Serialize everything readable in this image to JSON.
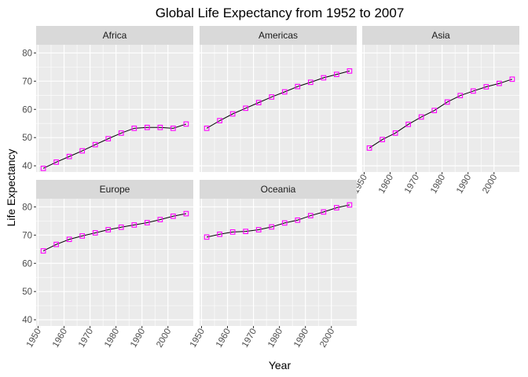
{
  "chart_data": {
    "type": "line",
    "title": "Global Life Expectancy from 1952 to 2007",
    "xlabel": "Year",
    "ylabel": "Life Expectancy",
    "x": [
      1952,
      1957,
      1962,
      1967,
      1972,
      1977,
      1982,
      1987,
      1992,
      1997,
      2002,
      2007
    ],
    "xlim": [
      1949.25,
      2009.75
    ],
    "ylim": [
      37.8,
      82.9
    ],
    "x_ticks": [
      "1950",
      "1960",
      "1970",
      "1980",
      "1990",
      "2000"
    ],
    "y_ticks": [
      "40",
      "50",
      "60",
      "70",
      "80"
    ],
    "grid": true,
    "marker": "square",
    "line_color": "#000000",
    "marker_color": "#ff00ff",
    "panel_background": "#ebebeb",
    "strip_background": "#d9d9d9",
    "facets": [
      {
        "name": "Africa",
        "values": [
          39.1,
          41.3,
          43.3,
          45.3,
          47.5,
          49.6,
          51.6,
          53.3,
          53.6,
          53.6,
          53.3,
          54.8
        ]
      },
      {
        "name": "Americas",
        "values": [
          53.3,
          56.0,
          58.4,
          60.4,
          62.4,
          64.4,
          66.2,
          68.1,
          69.6,
          71.2,
          72.4,
          73.6
        ]
      },
      {
        "name": "Asia",
        "values": [
          46.3,
          49.3,
          51.6,
          54.7,
          57.3,
          59.6,
          62.6,
          64.9,
          66.5,
          68.0,
          69.2,
          70.7
        ]
      },
      {
        "name": "Europe",
        "values": [
          64.4,
          66.7,
          68.5,
          69.7,
          70.8,
          71.9,
          72.8,
          73.6,
          74.4,
          75.5,
          76.7,
          77.6
        ]
      },
      {
        "name": "Oceania",
        "values": [
          69.3,
          70.3,
          71.1,
          71.3,
          71.9,
          72.9,
          74.3,
          75.3,
          76.9,
          78.2,
          79.7,
          80.7
        ]
      }
    ]
  }
}
